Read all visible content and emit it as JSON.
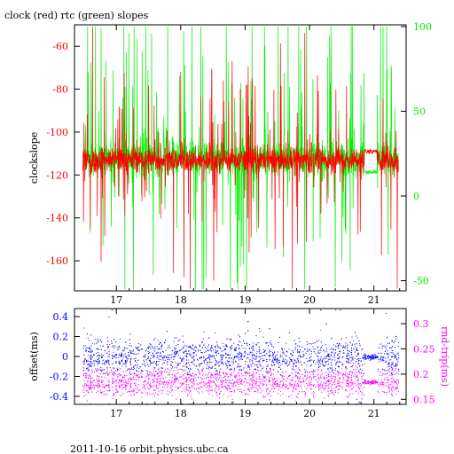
{
  "colors": {
    "clock": "#ff0000",
    "rtc": "#00ee00",
    "offset": "#0000ff",
    "rndtrip": "#ff00ff",
    "axis": "#000000"
  },
  "footer_text": "2011-10-16 orbit.physics.ubc.ca",
  "chart_data": [
    {
      "type": "line",
      "title": "clock (red) rtc (green) slopes",
      "ylabel": "clockslope",
      "xlim": [
        16.35,
        21.5
      ],
      "ylim": [
        -174,
        -50
      ],
      "x_ticks": [
        "17",
        "18",
        "19",
        "20",
        "21"
      ],
      "y_ticks": [
        "-60",
        "-80",
        "-100",
        "-120",
        "-140",
        "-160"
      ],
      "y2": {
        "ylim": [
          -56,
          101
        ],
        "ticks": [
          "100",
          "50",
          "0",
          "-50"
        ],
        "color": "#00ee00"
      },
      "series": [
        {
          "name": "clock",
          "color": "#ff0000",
          "axis": "left",
          "baseline": -113,
          "noise": 5,
          "spike_scale": 22
        },
        {
          "name": "rtc",
          "color": "#00ee00",
          "axis": "right",
          "baseline": 22,
          "noise": 9,
          "spike_scale": 45
        }
      ]
    },
    {
      "type": "scatter",
      "ylabel": "offset(ms)",
      "xlim": [
        16.35,
        21.5
      ],
      "ylim": [
        -0.48,
        0.48
      ],
      "x_ticks": [
        "17",
        "18",
        "19",
        "20",
        "21"
      ],
      "y_ticks": [
        "0.4",
        "0.2",
        "0",
        "-0.2",
        "-0.4"
      ],
      "y2": {
        "label": "rnd-trip(ms)",
        "ylim": [
          0.14,
          0.33
        ],
        "ticks": [
          "0.3",
          "0.25",
          "0.2",
          "0.15"
        ],
        "color": "#ff00ff"
      },
      "series": [
        {
          "name": "offset",
          "color": "#0000ff",
          "axis": "left",
          "center": 0.0,
          "spread": 0.12
        },
        {
          "name": "rnd-trip",
          "color": "#ff00ff",
          "axis": "right",
          "center": 0.185,
          "spread": 0.018
        }
      ]
    }
  ]
}
